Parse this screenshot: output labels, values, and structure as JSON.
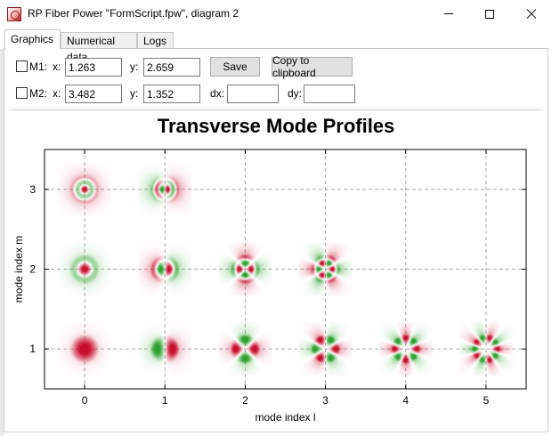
{
  "window": {
    "title": "RP Fiber Power \"FormScript.fpw\", diagram 2",
    "app_icon": "fiber-app-icon"
  },
  "tabs": [
    {
      "label": "Graphics",
      "active": true
    },
    {
      "label": "Numerical data",
      "active": false
    },
    {
      "label": "Logs",
      "active": false
    }
  ],
  "markers": {
    "m1": {
      "label": "M1:",
      "checked": false,
      "x_label": "x:",
      "x": "1.263",
      "y_label": "y:",
      "y": "2.659"
    },
    "m2": {
      "label": "M2:",
      "checked": false,
      "x_label": "x:",
      "x": "3.482",
      "y_label": "y:",
      "y": "1.352",
      "dx_label": "dx:",
      "dx": "",
      "dy_label": "dy:",
      "dy": ""
    }
  },
  "buttons": {
    "save": "Save",
    "copy": "Copy to clipboard"
  },
  "chart_data": {
    "type": "heatmap",
    "title": "Transverse Mode Profiles",
    "xlabel": "mode index l",
    "ylabel": "mode index m",
    "xlim": [
      -0.5,
      5.5
    ],
    "ylim": [
      0.5,
      3.5
    ],
    "x_ticks": [
      0,
      1,
      2,
      3,
      4,
      5
    ],
    "y_ticks": [
      1,
      2,
      3
    ],
    "x_tick_labels": [
      "0",
      "1",
      "2",
      "3",
      "4",
      "5"
    ],
    "y_tick_labels": [
      "1",
      "2",
      "3"
    ],
    "grid": true,
    "grid_style": "dashed",
    "colors": {
      "positive": "#c8102e",
      "negative": "#2ca02c",
      "zero": "#ffffff"
    },
    "modes": [
      {
        "l": 0,
        "m": 1
      },
      {
        "l": 1,
        "m": 1
      },
      {
        "l": 2,
        "m": 1
      },
      {
        "l": 3,
        "m": 1
      },
      {
        "l": 4,
        "m": 1
      },
      {
        "l": 5,
        "m": 1
      },
      {
        "l": 0,
        "m": 2
      },
      {
        "l": 1,
        "m": 2
      },
      {
        "l": 2,
        "m": 2
      },
      {
        "l": 3,
        "m": 2
      },
      {
        "l": 0,
        "m": 3
      },
      {
        "l": 1,
        "m": 3
      }
    ]
  }
}
